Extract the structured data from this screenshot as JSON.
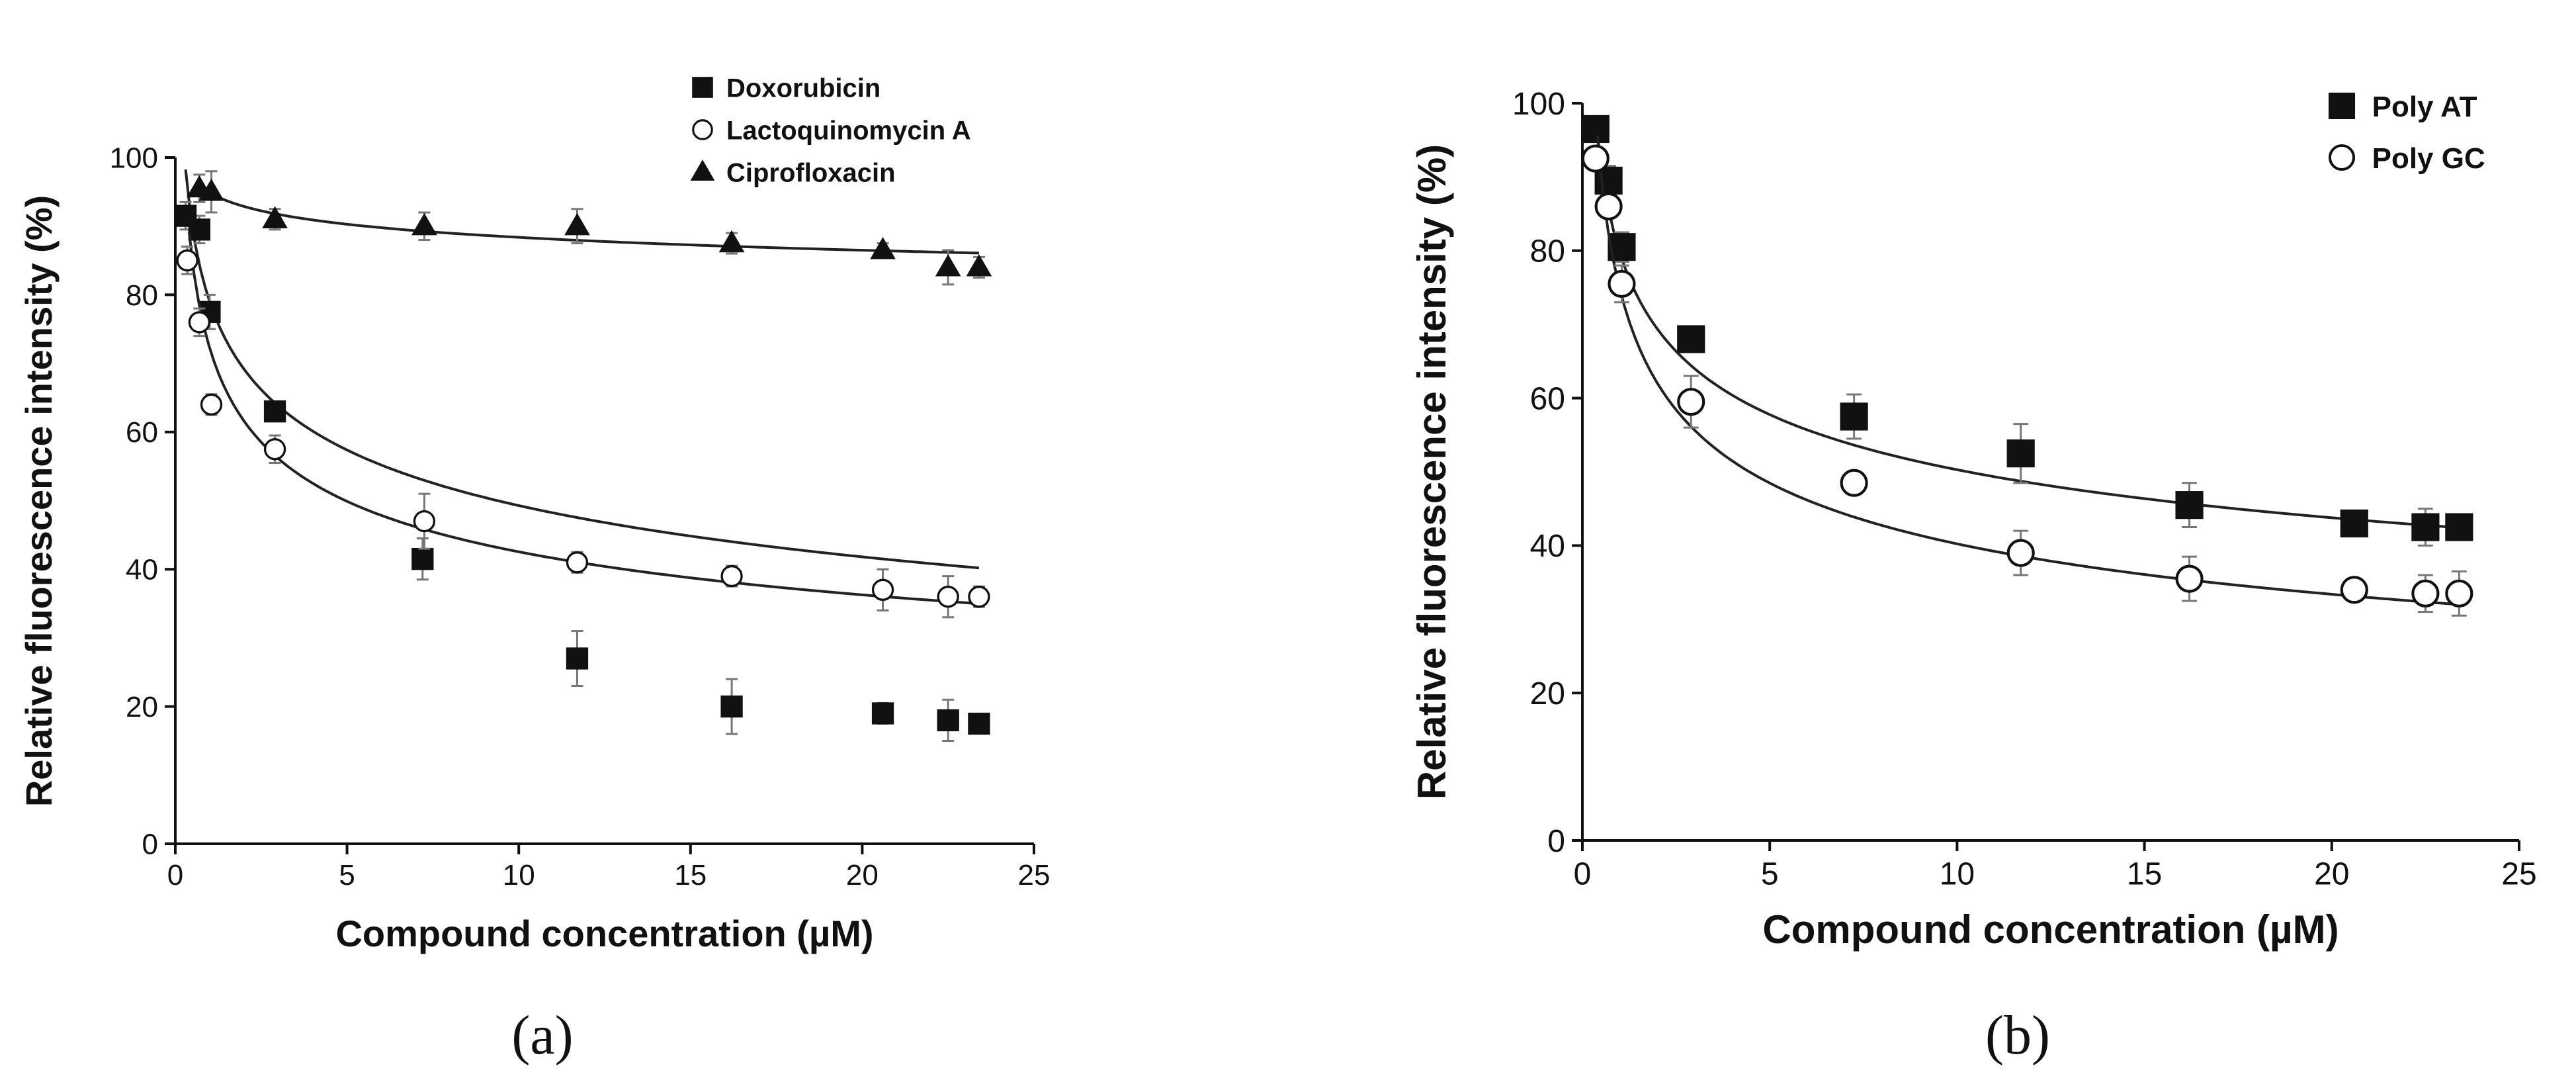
{
  "chart_data": [
    {
      "id": "a",
      "type": "scatter",
      "panel_label": "(a)",
      "xlabel": "Compound concentration (µM)",
      "ylabel": "Relative fluorescence intensity (%)",
      "xlim": [
        0,
        25
      ],
      "ylim": [
        0,
        100
      ],
      "xticks": [
        0,
        5,
        10,
        15,
        20,
        25
      ],
      "yticks": [
        0,
        20,
        40,
        60,
        80,
        100
      ],
      "legend_position": "top-right",
      "series": [
        {
          "name": "Doxorubicin",
          "marker": "square",
          "fill": "#111111",
          "x": [
            0.3,
            0.7,
            1.0,
            2.9,
            7.2,
            11.7,
            16.2,
            20.6,
            22.5,
            23.4
          ],
          "y": [
            91.5,
            89.5,
            77.5,
            63.0,
            41.5,
            27.0,
            20.0,
            19.0,
            18.0,
            17.5
          ],
          "err": [
            2.0,
            2.0,
            2.5,
            1.0,
            3.0,
            4.0,
            4.0,
            1.5,
            3.0,
            1.0
          ],
          "fit": {
            "model": "power",
            "a": 79.0,
            "b": -0.153,
            "c": -2.72,
            "x_from": 0.3,
            "x_to": 23.4
          }
        },
        {
          "name": "Lactoquinomycin A",
          "marker": "circle",
          "fill": "#ffffff",
          "x": [
            0.35,
            0.7,
            1.05,
            2.9,
            7.25,
            11.7,
            16.2,
            20.6,
            22.5,
            23.4
          ],
          "y": [
            85.0,
            76.0,
            64.0,
            57.5,
            47.0,
            41.0,
            39.0,
            37.0,
            36.0,
            36.0
          ],
          "err": [
            2.0,
            2.0,
            1.5,
            2.0,
            4.0,
            1.5,
            1.5,
            3.0,
            3.0,
            1.5
          ],
          "fit": {
            "model": "power",
            "a": 72.25,
            "b": -0.23,
            "c": 0,
            "x_from": 0.4,
            "x_to": 23.4
          }
        },
        {
          "name": "Ciprofloxacin",
          "marker": "triangle",
          "fill": "#111111",
          "x": [
            0.7,
            1.05,
            2.9,
            7.25,
            11.7,
            16.2,
            20.6,
            22.5,
            23.4
          ],
          "y": [
            95.5,
            95.0,
            91.0,
            90.0,
            90.0,
            87.5,
            86.5,
            84.0,
            84.0
          ],
          "err": [
            2.0,
            3.0,
            1.5,
            2.0,
            2.5,
            1.5,
            1.0,
            2.5,
            1.5
          ],
          "fit": {
            "model": "power",
            "a": 94.88,
            "b": -0.0309,
            "c": 0,
            "x_from": 0.7,
            "x_to": 23.4
          }
        }
      ]
    },
    {
      "id": "b",
      "type": "scatter",
      "panel_label": "(b)",
      "xlabel": "Compound concentration (µM)",
      "ylabel": "Relative fluorescence intensity (%)",
      "xlim": [
        0,
        25
      ],
      "ylim": [
        0,
        100
      ],
      "xticks": [
        0,
        5,
        10,
        15,
        20,
        25
      ],
      "yticks": [
        0,
        20,
        40,
        60,
        80,
        100
      ],
      "legend_position": "top-right",
      "series": [
        {
          "name": "Poly AT",
          "marker": "square",
          "fill": "#111111",
          "x": [
            0.35,
            0.7,
            1.05,
            2.9,
            7.25,
            11.7,
            16.2,
            20.6,
            22.5,
            23.4
          ],
          "y": [
            96.5,
            89.5,
            80.5,
            68.0,
            57.5,
            52.5,
            45.5,
            43.0,
            42.5,
            42.5
          ],
          "err": [
            1.5,
            2.0,
            2.0,
            1.5,
            3.0,
            4.0,
            3.0,
            1.5,
            2.5,
            1.0
          ],
          "fit": {
            "model": "power",
            "a": 79.7,
            "b": -0.2,
            "c": 0,
            "x_from": 0.4,
            "x_to": 23.4
          }
        },
        {
          "name": "Poly GC",
          "marker": "circle",
          "fill": "#ffffff",
          "x": [
            0.35,
            0.7,
            1.05,
            2.9,
            7.25,
            11.7,
            16.2,
            20.6,
            22.5,
            23.4
          ],
          "y": [
            92.5,
            86.0,
            75.5,
            59.5,
            48.5,
            39.0,
            35.5,
            34.0,
            33.5,
            33.5
          ],
          "err": [
            1.5,
            1.5,
            2.5,
            3.5,
            1.5,
            3.0,
            3.0,
            1.5,
            2.5,
            3.0
          ],
          "fit": {
            "model": "power",
            "a": 74.75,
            "b": -0.269,
            "c": 0,
            "x_from": 0.4,
            "x_to": 23.4
          }
        }
      ]
    }
  ]
}
